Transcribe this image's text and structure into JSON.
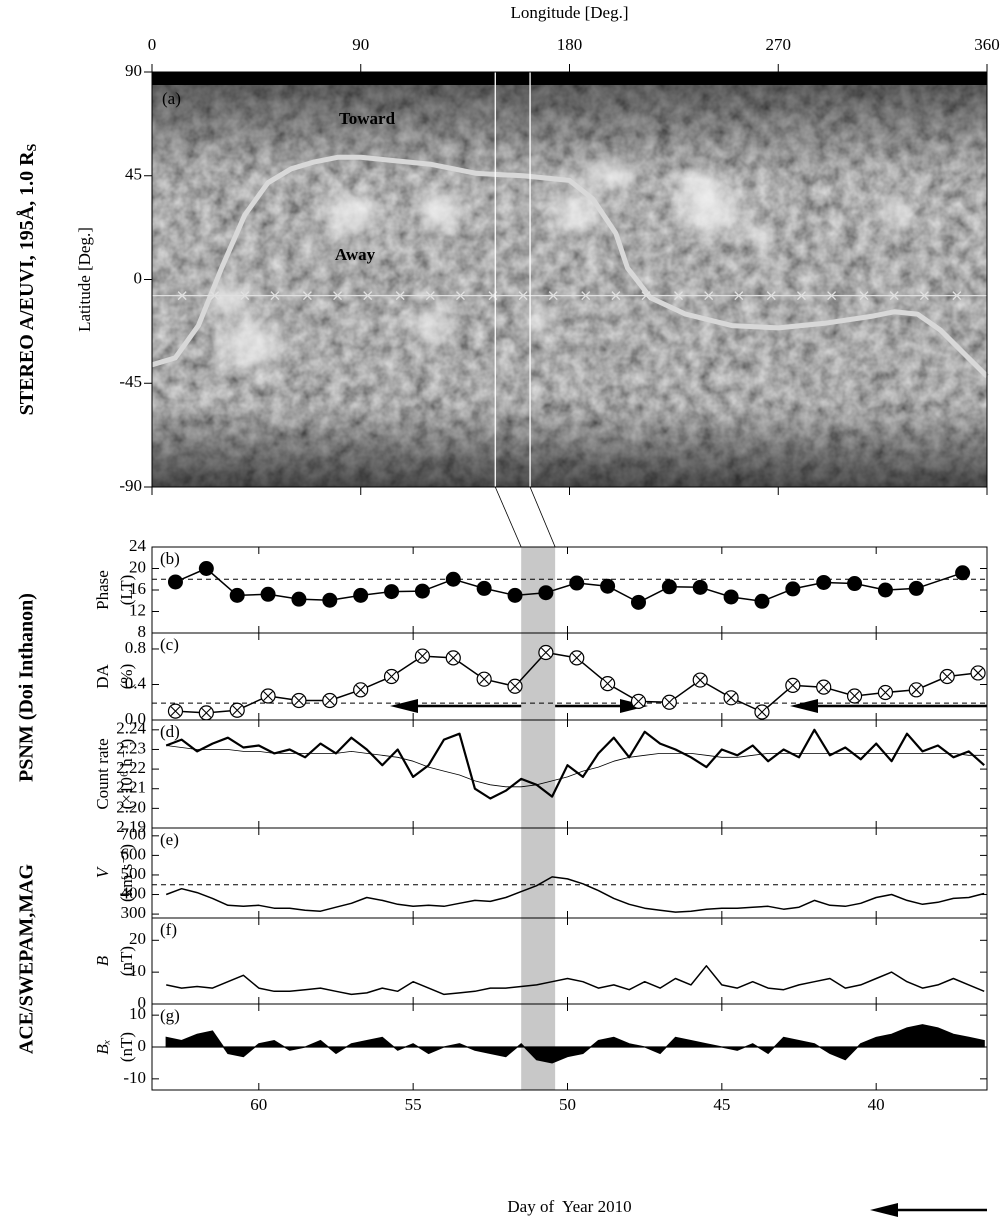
{
  "chart_data": [
    {
      "type": "map",
      "panel_label": "(a)",
      "xlabel": "Longitude [Deg.]",
      "ylabel": [
        "Latitude [Deg.]"
      ],
      "side_label": "STEREO A/EUVI, 195Å, 1.0 R",
      "side_label_sub": "S",
      "annotations": [
        "Toward",
        "Away"
      ],
      "xlim": [
        0,
        360
      ],
      "ylim": [
        -90,
        90
      ],
      "xticks": [
        0,
        90,
        180,
        270,
        360
      ],
      "yticks": [
        90,
        45,
        0,
        -45,
        -90
      ],
      "highlight_lon": [
        148,
        163
      ],
      "series": [
        {
          "x": [
            0,
            10,
            20,
            30,
            40,
            50,
            60,
            70,
            80,
            90,
            100,
            120,
            140,
            160,
            180,
            190,
            200,
            205,
            215,
            230,
            250,
            270,
            290,
            310,
            320,
            330,
            340,
            350,
            360
          ],
          "values": [
            -37,
            -34,
            -20,
            5,
            28,
            42,
            48,
            51,
            53,
            53,
            52,
            50,
            46,
            45,
            43,
            35,
            20,
            5,
            -8,
            -15,
            -20,
            -21,
            -19,
            -16,
            -14,
            -15,
            -22,
            -32,
            -42
          ],
          "color": "#d8d8d8",
          "width": 5
        },
        {
          "x": [
            13,
            27,
            40,
            53,
            67,
            80,
            93,
            107,
            120,
            133,
            147,
            160,
            173,
            187,
            200,
            213,
            227,
            240,
            253,
            267,
            280,
            293,
            307,
            320,
            333,
            347
          ],
          "values": [
            -7,
            -7,
            -7,
            -7,
            -7,
            -7,
            -7,
            -7,
            -7,
            -7,
            -7,
            -7,
            -7,
            -7,
            -7,
            -7,
            -7,
            -7,
            -7,
            -7,
            -7,
            -7,
            -7,
            -7,
            -7,
            -7
          ],
          "color": "#e0e0e0",
          "marker": "cross"
        }
      ]
    },
    {
      "type": "line",
      "panel_label": "(b)",
      "ylabel": [
        "Phase",
        "(LT)"
      ],
      "group_label": "PSNM (Doi Inthanon)",
      "xlim": [
        63.46,
        36.41
      ],
      "ylim": [
        8,
        24
      ],
      "yticks": [
        8,
        12,
        16,
        20,
        24
      ],
      "hline": 18,
      "highlight": [
        51.5,
        50.4
      ],
      "series": [
        {
          "x": [
            62.7,
            61.7,
            60.7,
            59.7,
            58.7,
            57.7,
            56.7,
            55.7,
            54.7,
            53.7,
            52.7,
            51.7,
            50.7,
            49.7,
            48.7,
            47.7,
            46.7,
            45.7,
            44.7,
            43.7,
            42.7,
            41.7,
            40.7,
            39.7,
            38.7,
            37.2
          ],
          "values": [
            17.5,
            20,
            15,
            15.2,
            14.3,
            14.1,
            15,
            15.7,
            15.8,
            18,
            16.3,
            15,
            15.5,
            17.3,
            16.7,
            13.7,
            16.6,
            16.5,
            14.7,
            13.9,
            16.2,
            17.4,
            17.2,
            16,
            16.3,
            19.2
          ],
          "color": "#000000",
          "width": 1.5,
          "marker": "filled-circle"
        }
      ]
    },
    {
      "type": "line",
      "panel_label": "(c)",
      "ylabel": [
        "DA",
        "(%)"
      ],
      "xlim": [
        63.46,
        36.41
      ],
      "ylim": [
        0,
        0.98
      ],
      "yticks": [
        {
          "value": 0,
          "label": "0.0"
        },
        0.4,
        0.8
      ],
      "hline": 0.19,
      "series": [
        {
          "x": [
            62.7,
            61.7,
            60.7,
            59.7,
            58.7,
            57.7,
            56.7,
            55.7,
            54.7,
            53.7,
            52.7,
            51.7,
            50.7,
            49.7,
            48.7,
            47.7,
            46.7,
            45.7,
            44.7,
            43.7,
            42.7,
            41.7,
            40.7,
            39.7,
            38.7,
            37.7,
            36.7
          ],
          "values": [
            0.1,
            0.08,
            0.11,
            0.27,
            0.22,
            0.22,
            0.34,
            0.49,
            0.72,
            0.7,
            0.46,
            0.38,
            0.76,
            0.7,
            0.41,
            0.21,
            0.2,
            0.45,
            0.25,
            0.09,
            0.39,
            0.37,
            0.27,
            0.31,
            0.34,
            0.49,
            0.53
          ],
          "color": "#000000",
          "width": 1.5,
          "marker": "crossed-circle"
        }
      ]
    },
    {
      "type": "line",
      "panel_label": "(d)",
      "ylabel": [
        "Count rate",
        "(×10⁶ h⁻¹)"
      ],
      "xlim": [
        63.46,
        36.41
      ],
      "ylim": [
        2.19,
        2.245
      ],
      "yticks": [
        2.19,
        {
          "value": 2.2,
          "label": "2.20"
        },
        2.21,
        2.22,
        2.23,
        2.24
      ],
      "series": [
        {
          "x": [
            63,
            62.5,
            62,
            61.5,
            61,
            60.5,
            60,
            59.5,
            59,
            58.5,
            58,
            57.5,
            57,
            56.5,
            56,
            55.5,
            55,
            54.5,
            54,
            53.5,
            53,
            52.5,
            52,
            51.5,
            51,
            50.5,
            50,
            49.5,
            49,
            48.5,
            48,
            47.5,
            47,
            46.5,
            46,
            45.5,
            45,
            44.5,
            44,
            43.5,
            43,
            42.5,
            42,
            41.5,
            41,
            40.5,
            40,
            39.5,
            39,
            38.5,
            38,
            37.5,
            37,
            36.5
          ],
          "values": [
            2.232,
            2.235,
            2.229,
            2.233,
            2.236,
            2.231,
            2.232,
            2.228,
            2.23,
            2.226,
            2.233,
            2.228,
            2.236,
            2.23,
            2.222,
            2.23,
            2.216,
            2.222,
            2.235,
            2.238,
            2.21,
            2.205,
            2.209,
            2.215,
            2.212,
            2.206,
            2.222,
            2.216,
            2.228,
            2.236,
            2.226,
            2.239,
            2.233,
            2.23,
            2.226,
            2.221,
            2.23,
            2.227,
            2.232,
            2.224,
            2.23,
            2.226,
            2.24,
            2.227,
            2.231,
            2.225,
            2.233,
            2.224,
            2.238,
            2.229,
            2.232,
            2.226,
            2.229,
            2.222
          ],
          "color": "#000000",
          "width": 2.2
        },
        {
          "x": [
            63,
            62.5,
            62,
            61.5,
            61,
            60.5,
            60,
            59.5,
            59,
            58.5,
            58,
            57.5,
            57,
            56.5,
            56,
            55.5,
            55,
            54.5,
            54,
            53.5,
            53,
            52.5,
            52,
            51.5,
            51,
            50.5,
            50,
            49.5,
            49,
            48.5,
            48,
            47.5,
            47,
            46.5,
            46,
            45.5,
            45,
            44.5,
            44,
            43.5,
            43,
            42.5,
            42,
            41.5,
            41,
            40.5,
            40,
            39.5,
            39,
            38.5,
            38,
            37.5,
            37,
            36.5
          ],
          "values": [
            2.232,
            2.231,
            2.23,
            2.23,
            2.23,
            2.229,
            2.229,
            2.228,
            2.228,
            2.228,
            2.228,
            2.228,
            2.229,
            2.228,
            2.227,
            2.226,
            2.224,
            2.221,
            2.219,
            2.217,
            2.214,
            2.212,
            2.211,
            2.211,
            2.212,
            2.214,
            2.216,
            2.219,
            2.221,
            2.224,
            2.226,
            2.227,
            2.228,
            2.228,
            2.228,
            2.227,
            2.226,
            2.226,
            2.227,
            2.228,
            2.228,
            2.228,
            2.228,
            2.228,
            2.228,
            2.228,
            2.228,
            2.228,
            2.228,
            2.228,
            2.228,
            2.228,
            2.227,
            2.227
          ],
          "color": "#000000",
          "width": 0.8
        }
      ]
    },
    {
      "type": "line",
      "panel_label": "(e)",
      "ylabel": [
        "V",
        "(km s⁻¹)"
      ],
      "ylabel_italic": true,
      "group_label": "ACE/SWEPAM,MAG",
      "xlim": [
        63.46,
        36.41
      ],
      "ylim": [
        280,
        740
      ],
      "yticks": [
        300,
        400,
        500,
        600,
        700
      ],
      "hline": 450,
      "series": [
        {
          "x": [
            63,
            62.5,
            62,
            61.5,
            61,
            60.5,
            60,
            59.5,
            59,
            58.5,
            58,
            57.5,
            57,
            56.5,
            56,
            55.5,
            55,
            54.5,
            54,
            53.5,
            53,
            52.5,
            52,
            51.5,
            51,
            50.5,
            50,
            49.5,
            49,
            48.5,
            48,
            47.5,
            47,
            46.5,
            46,
            45.5,
            45,
            44.5,
            44,
            43.5,
            43,
            42.5,
            42,
            41.5,
            41,
            40.5,
            40,
            39.5,
            39,
            38.5,
            38,
            37.5,
            37,
            36.5
          ],
          "values": [
            400,
            430,
            410,
            380,
            345,
            340,
            345,
            330,
            330,
            320,
            315,
            335,
            355,
            385,
            370,
            350,
            340,
            345,
            340,
            355,
            370,
            365,
            385,
            415,
            445,
            490,
            480,
            455,
            420,
            380,
            350,
            330,
            320,
            310,
            315,
            325,
            330,
            330,
            335,
            340,
            325,
            335,
            370,
            345,
            340,
            355,
            385,
            400,
            370,
            350,
            360,
            380,
            385,
            405
          ],
          "color": "#000000",
          "width": 1.5
        }
      ]
    },
    {
      "type": "line",
      "panel_label": "(f)",
      "ylabel": [
        "B",
        "(nT)"
      ],
      "ylabel_italic": true,
      "xlim": [
        63.46,
        36.41
      ],
      "ylim": [
        0,
        27
      ],
      "yticks": [
        0,
        10,
        20
      ],
      "series": [
        {
          "x": [
            63,
            62.5,
            62,
            61.5,
            61,
            60.5,
            60,
            59.5,
            59,
            58.5,
            58,
            57.5,
            57,
            56.5,
            56,
            55.5,
            55,
            54.5,
            54,
            53.5,
            53,
            52.5,
            52,
            51.5,
            51,
            50.5,
            50,
            49.5,
            49,
            48.5,
            48,
            47.5,
            47,
            46.5,
            46,
            45.5,
            45,
            44.5,
            44,
            43.5,
            43,
            42.5,
            42,
            41.5,
            41,
            40.5,
            40,
            39.5,
            39,
            38.5,
            38,
            37.5,
            37,
            36.5
          ],
          "values": [
            6,
            5,
            5.5,
            5,
            7,
            9,
            5,
            4,
            4,
            4.5,
            5,
            4,
            3,
            3.5,
            5,
            4,
            7,
            5,
            3,
            3.5,
            4,
            5,
            5,
            5.5,
            6,
            7,
            8,
            7,
            5,
            6,
            4.5,
            7,
            5,
            8,
            6,
            12,
            6,
            5,
            7,
            5,
            4.5,
            6,
            7,
            8,
            5,
            6,
            8,
            10,
            7,
            5,
            6,
            8,
            6,
            4
          ],
          "color": "#000000",
          "width": 1.5
        }
      ]
    },
    {
      "type": "area",
      "panel_label": "(g)",
      "ylabel": [
        "Bₓ",
        "(nT)"
      ],
      "ylabel_italic": true,
      "xlabel": "Day of  Year 2010",
      "xlim": [
        63.46,
        36.41
      ],
      "ylim": [
        -13.5,
        13.5
      ],
      "yticks": [
        -10,
        0,
        10
      ],
      "xticks": [
        60,
        55,
        50,
        45,
        40
      ],
      "series": [
        {
          "x": [
            63,
            62.5,
            62,
            61.5,
            61,
            60.5,
            60,
            59.5,
            59,
            58.5,
            58,
            57.5,
            57,
            56.5,
            56,
            55.5,
            55,
            54.5,
            54,
            53.5,
            53,
            52.5,
            52,
            51.5,
            51,
            50.5,
            50,
            49.5,
            49,
            48.5,
            48,
            47.5,
            47,
            46.5,
            46,
            45.5,
            45,
            44.5,
            44,
            43.5,
            43,
            42.5,
            42,
            41.5,
            41,
            40.5,
            40,
            39.5,
            39,
            38.5,
            38,
            37.5,
            37,
            36.5
          ],
          "values": [
            3,
            2,
            4,
            5,
            -2,
            -3,
            1,
            2,
            -1,
            0,
            2,
            -2,
            1,
            2,
            3,
            -1,
            1,
            -2,
            0,
            1,
            -1,
            -2,
            -3,
            1,
            -4,
            -5,
            -3,
            -2,
            2,
            3,
            1,
            0,
            -2,
            3,
            2,
            1,
            0,
            -1,
            1,
            -2,
            3,
            2,
            1,
            -2,
            -4,
            1,
            3,
            4,
            6,
            7,
            6,
            4,
            3,
            2
          ],
          "color": "#000000",
          "width": 1.2
        }
      ]
    }
  ]
}
